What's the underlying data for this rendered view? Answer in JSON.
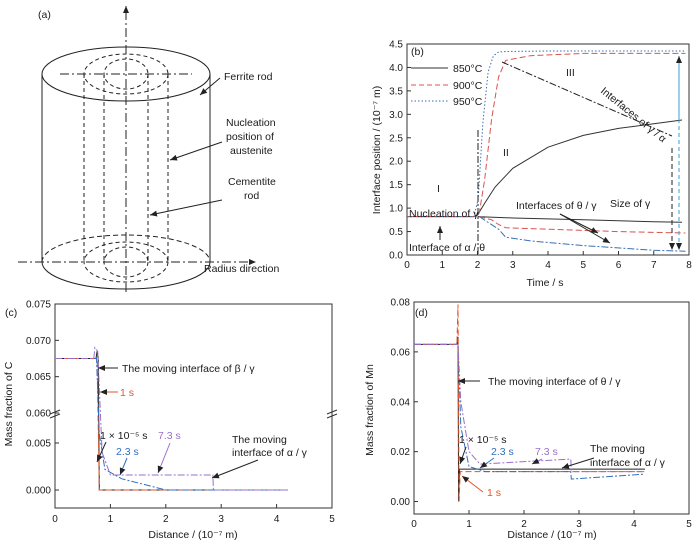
{
  "panels": {
    "a": {
      "tag": "(a)",
      "labels": {
        "ferrite": "Ferrite rod",
        "nucleation_1": "Nucleation",
        "nucleation_2": "position of",
        "nucleation_3": "austenite",
        "cementite_1": "Cementite",
        "cementite_2": "rod",
        "radius": "Radius direction"
      }
    }
  },
  "chart_data": [
    {
      "panel": "b",
      "tag": "(b)",
      "type": "line",
      "xlabel": "Time / s",
      "ylabel": "Interface position / (10⁻⁷ m)",
      "xlim": [
        0,
        8
      ],
      "ylim": [
        0,
        4.5
      ],
      "xticks": [
        "0",
        "1",
        "2",
        "3",
        "4",
        "5",
        "6",
        "7",
        "8"
      ],
      "yticks": [
        "0.0",
        "0.5",
        "1.0",
        "1.5",
        "2.0",
        "2.5",
        "3.0",
        "3.5",
        "4.0",
        "4.5"
      ],
      "legend": {
        "position": "top-left",
        "entries": [
          "850°C",
          "900°C",
          "950°C"
        ]
      },
      "colors": {
        "850": "#333333",
        "900": "#d9534f",
        "950": "#3a6fb5",
        "guide": "#222222",
        "size": "#3a9fd8"
      },
      "regions": [
        "I",
        "II",
        "III"
      ],
      "annotations": {
        "nucleation": "Nucleation of γ",
        "theta_gamma": "Interfaces of θ / γ",
        "alpha_theta": "Interface of α / θ",
        "size": "Size of γ",
        "gamma_alpha": "Interfaces of γ / α"
      },
      "series": [
        {
          "name": "850°C",
          "style": "solid",
          "x": [
            0,
            1,
            1.9,
            2.0,
            2.2,
            2.5,
            3.0,
            4.0,
            5.0,
            6.0,
            7.0,
            7.8
          ],
          "y": [
            0.82,
            0.82,
            0.82,
            0.85,
            1.1,
            1.45,
            1.85,
            2.3,
            2.55,
            2.7,
            2.8,
            2.88
          ]
        },
        {
          "name": "850°C",
          "style": "solid",
          "x": [
            2.0,
            3,
            4,
            5,
            6,
            7,
            7.8
          ],
          "y": [
            0.82,
            0.79,
            0.77,
            0.75,
            0.73,
            0.71,
            0.7
          ]
        },
        {
          "name": "900°C",
          "style": "dash",
          "x": [
            0,
            1.9,
            2.05,
            2.2,
            2.4,
            2.6,
            2.8,
            3.5,
            5,
            7,
            7.9
          ],
          "y": [
            0.82,
            0.82,
            0.9,
            1.6,
            2.9,
            3.8,
            4.15,
            4.25,
            4.3,
            4.3,
            4.3
          ]
        },
        {
          "name": "900°C",
          "style": "dash",
          "x": [
            2.05,
            2.4,
            2.6,
            2.8,
            4,
            6,
            7.9
          ],
          "y": [
            0.82,
            0.75,
            0.65,
            0.58,
            0.55,
            0.5,
            0.47
          ]
        },
        {
          "name": "950°C",
          "style": "dot",
          "x": [
            0,
            1.9,
            2.02,
            2.15,
            2.3,
            2.45,
            2.6,
            2.8,
            4,
            6,
            7.9
          ],
          "y": [
            0.82,
            0.82,
            1.2,
            2.8,
            3.9,
            4.25,
            4.33,
            4.34,
            4.35,
            4.35,
            4.35
          ]
        },
        {
          "name": "950°C",
          "style": "dashdot",
          "x": [
            2.05,
            2.6,
            2.8,
            3.5,
            5,
            7,
            7.9
          ],
          "y": [
            0.82,
            0.55,
            0.38,
            0.3,
            0.2,
            0.1,
            0.08
          ]
        }
      ]
    },
    {
      "panel": "c",
      "tag": "(c)",
      "type": "line",
      "xlabel": "Distance / (10⁻⁷ m)",
      "ylabel": "Mass fraction of C",
      "xlim": [
        0,
        5
      ],
      "ylim_lower": [
        0,
        0.005
      ],
      "ylim_upper": [
        0.06,
        0.075
      ],
      "xticks": [
        "0",
        "1",
        "2",
        "3",
        "4",
        "5"
      ],
      "yticks_lower": [
        "0.000",
        "0.005"
      ],
      "yticks_upper": [
        "0.060",
        "0.065",
        "0.070",
        "0.075"
      ],
      "colors": {
        "1e-5": "#222222",
        "1s": "#e0562a",
        "2.3s": "#2f6fc0",
        "7.3s": "#9b6fc8"
      },
      "annotations": {
        "beta_gamma": "The moving interface of β / γ",
        "t1": "1 s",
        "t0": "1 × 10⁻⁵ s",
        "t23": "2.3 s",
        "t73": "7.3 s",
        "alpha_gamma_1": "The moving",
        "alpha_gamma_2": "interface of α / γ"
      },
      "series": [
        {
          "name": "1 × 10⁻⁵ s",
          "style": "solid",
          "x": [
            0,
            0.74,
            0.76,
            0.78,
            0.8,
            4.2
          ],
          "y": [
            0.0675,
            0.0675,
            0.0685,
            0.0675,
            0.0,
            0.0
          ]
        },
        {
          "name": "1 s",
          "style": "dash",
          "x": [
            0,
            0.73,
            0.76,
            0.8,
            1.5,
            4.2
          ],
          "y": [
            0.0675,
            0.0675,
            0.0675,
            0.0,
            0.0,
            0.0
          ]
        },
        {
          "name": "2.3 s",
          "style": "dashdot",
          "x": [
            0,
            0.72,
            0.75,
            0.8,
            0.9,
            1.2,
            2.0,
            4.2
          ],
          "y": [
            0.0675,
            0.0675,
            0.0675,
            0.006,
            0.0022,
            0.0012,
            0.0,
            0.0
          ]
        },
        {
          "name": "7.3 s",
          "style": "dashdot",
          "x": [
            0,
            0.7,
            0.72,
            0.77,
            0.85,
            1.0,
            2.0,
            2.85,
            2.86,
            4.2
          ],
          "y": [
            0.0675,
            0.0675,
            0.069,
            0.0685,
            0.004,
            0.0016,
            0.0016,
            0.0016,
            0.0,
            0.0
          ]
        }
      ]
    },
    {
      "panel": "d",
      "tag": "(d)",
      "type": "line",
      "xlabel": "Distance / (10⁻⁷ m)",
      "ylabel": "Mass fraction of Mn",
      "xlim": [
        0,
        5
      ],
      "ylim": [
        -0.005,
        0.08
      ],
      "xticks": [
        "0",
        "1",
        "2",
        "3",
        "4",
        "5"
      ],
      "yticks": [
        "0.00",
        "0.02",
        "0.04",
        "0.06",
        "0.08"
      ],
      "colors": {
        "1e-5": "#222222",
        "1s": "#e0562a",
        "2.3s": "#2f6fc0",
        "7.3s": "#9b6fc8"
      },
      "annotations": {
        "theta_gamma": "The moving interface of θ / γ",
        "t0": "1 × 10⁻⁵ s",
        "t23": "2.3 s",
        "t73": "7.3 s",
        "t1": "1 s",
        "alpha_gamma_1": "The moving",
        "alpha_gamma_2": "interface of α / γ"
      },
      "series": [
        {
          "name": "1 × 10⁻⁵ s",
          "style": "solid",
          "x": [
            0,
            0.78,
            0.8,
            0.81,
            0.83,
            4.2
          ],
          "y": [
            0.063,
            0.063,
            0.066,
            0.0,
            0.013,
            0.013
          ]
        },
        {
          "name": "1 s",
          "style": "dash",
          "x": [
            0,
            0.78,
            0.8,
            0.82,
            0.84,
            0.9,
            4.2
          ],
          "y": [
            0.063,
            0.063,
            0.079,
            0.0,
            0.012,
            0.012,
            0.012
          ]
        },
        {
          "name": "2.3 s",
          "style": "dashdot",
          "x": [
            0,
            0.8,
            0.85,
            1.0,
            1.3,
            2.0,
            2.85,
            2.86,
            4.2
          ],
          "y": [
            0.063,
            0.063,
            0.03,
            0.014,
            0.012,
            0.012,
            0.012,
            0.009,
            0.011
          ]
        },
        {
          "name": "7.3 s",
          "style": "dashdot",
          "x": [
            0,
            0.8,
            0.85,
            1.0,
            1.2,
            2.0,
            2.85,
            2.86,
            4.2
          ],
          "y": [
            0.063,
            0.063,
            0.04,
            0.02,
            0.015,
            0.016,
            0.017,
            0.012,
            0.012
          ]
        }
      ]
    }
  ]
}
